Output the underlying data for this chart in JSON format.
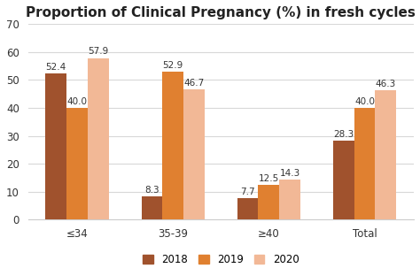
{
  "title": "Proportion of Clinical Pregnancy (%) in fresh cycles",
  "categories": [
    "≤34",
    "35-39",
    "≥40",
    "Total"
  ],
  "series": {
    "2018": [
      52.4,
      8.3,
      7.7,
      28.3
    ],
    "2019": [
      40.0,
      52.9,
      12.5,
      40.0
    ],
    "2020": [
      57.9,
      46.7,
      14.3,
      46.3
    ]
  },
  "colors": {
    "2018": "#A0522D",
    "2019": "#E08030",
    "2020": "#F2B896"
  },
  "ylim": [
    0,
    70
  ],
  "yticks": [
    0,
    10,
    20,
    30,
    40,
    50,
    60,
    70
  ],
  "bar_width": 0.22,
  "title_fontsize": 11,
  "label_fontsize": 7.5,
  "tick_fontsize": 8.5,
  "legend_fontsize": 8.5,
  "background_color": "#ffffff",
  "plot_bg_color": "#ffffff",
  "grid_color": "#d8d8d8"
}
